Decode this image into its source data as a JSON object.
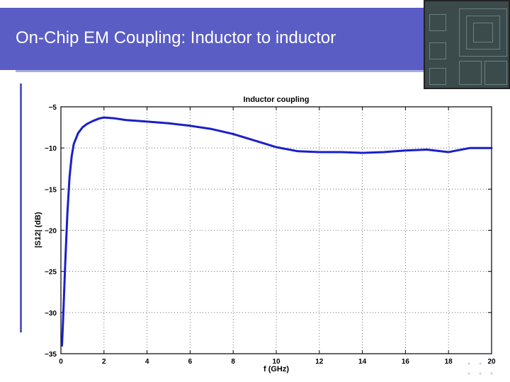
{
  "slide": {
    "title": "On-Chip EM Coupling: Inductor to inductor"
  },
  "colors": {
    "title_bar": "#5a5dc4",
    "title_text": "#ffffff",
    "series": "#1a1fc8"
  },
  "chart_data": {
    "type": "line",
    "title": "Inductor coupling",
    "xlabel": "f (GHz)",
    "ylabel": "|S12| (dB)",
    "xlim": [
      0,
      20
    ],
    "ylim": [
      -35,
      -5
    ],
    "xticks": [
      0,
      2,
      4,
      6,
      8,
      10,
      12,
      14,
      16,
      18,
      20
    ],
    "yticks": [
      -5,
      -10,
      -15,
      -20,
      -25,
      -30,
      -35
    ],
    "grid": true,
    "series": [
      {
        "x": [
          0.05,
          0.1,
          0.2,
          0.3,
          0.4,
          0.5,
          0.6,
          0.8,
          1.0,
          1.2,
          1.5,
          1.8,
          2.0,
          2.5,
          3.0,
          4.0,
          5.0,
          6.0,
          7.0,
          8.0,
          9.0,
          10.0,
          11.0,
          12.0,
          13.0,
          14.0,
          15.0,
          16.0,
          17.0,
          18.0,
          19.0,
          20.0
        ],
        "y": [
          -34,
          -31,
          -24,
          -18,
          -13.5,
          -11,
          -9.5,
          -8.2,
          -7.5,
          -7.1,
          -6.7,
          -6.4,
          -6.3,
          -6.4,
          -6.6,
          -6.8,
          -7.0,
          -7.3,
          -7.7,
          -8.3,
          -9.1,
          -9.9,
          -10.4,
          -10.5,
          -10.5,
          -10.6,
          -10.5,
          -10.3,
          -10.2,
          -10.5,
          -10.0,
          -10.0
        ]
      }
    ]
  }
}
